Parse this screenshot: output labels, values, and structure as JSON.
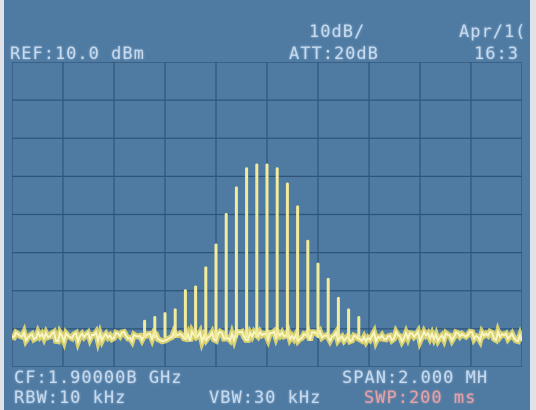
{
  "header": {
    "ref_level": "REF:10.0 dBm",
    "scale": "10dB/",
    "attenuation": "ATT:20dB",
    "date": "Apr/1(",
    "time": "16:3"
  },
  "footer": {
    "center_freq": "CF:1.90000B GHz",
    "span": "SPAN:2.000 MH",
    "rbw": "RBW:10 kHz",
    "vbw": "VBW:30 kHz",
    "sweep": "SWP:200 ms"
  },
  "colors": {
    "screen_background": "#4f7ba3",
    "grid_line": "#2f547a",
    "trace": "#f2ec9a",
    "noise_floor": "#efe16a",
    "header_text": "#c7daee",
    "sweep_text": "#e7a1a6"
  },
  "chart_data": {
    "type": "line",
    "title": "",
    "xlabel": "",
    "ylabel": "",
    "center_frequency_ghz": 1.9,
    "span_mhz": 2.0,
    "reference_level_dbm": 10.0,
    "scale_db_per_div": 10,
    "divisions_x": 10,
    "divisions_y": 8,
    "ylim_dbm": [
      -70,
      10
    ],
    "xlim_mhz_offset": [
      -1.0,
      1.0
    ],
    "noise_floor_dbm": -62,
    "series": [
      {
        "values": [
          {
            "x": -0.48,
            "y": -58
          },
          {
            "x": -0.44,
            "y": -57
          },
          {
            "x": -0.4,
            "y": -56
          },
          {
            "x": -0.36,
            "y": -55
          },
          {
            "x": -0.32,
            "y": -50
          },
          {
            "x": -0.28,
            "y": -49
          },
          {
            "x": -0.24,
            "y": -44
          },
          {
            "x": -0.2,
            "y": -38
          },
          {
            "x": -0.16,
            "y": -30
          },
          {
            "x": -0.12,
            "y": -23
          },
          {
            "x": -0.08,
            "y": -18
          },
          {
            "x": -0.04,
            "y": -17
          },
          {
            "x": 0.0,
            "y": -17
          },
          {
            "x": 0.04,
            "y": -18
          },
          {
            "x": 0.08,
            "y": -22
          },
          {
            "x": 0.12,
            "y": -28
          },
          {
            "x": 0.16,
            "y": -37
          },
          {
            "x": 0.2,
            "y": -43
          },
          {
            "x": 0.24,
            "y": -47
          },
          {
            "x": 0.28,
            "y": -52
          },
          {
            "x": 0.32,
            "y": -55
          },
          {
            "x": 0.36,
            "y": -57
          }
        ]
      }
    ]
  }
}
